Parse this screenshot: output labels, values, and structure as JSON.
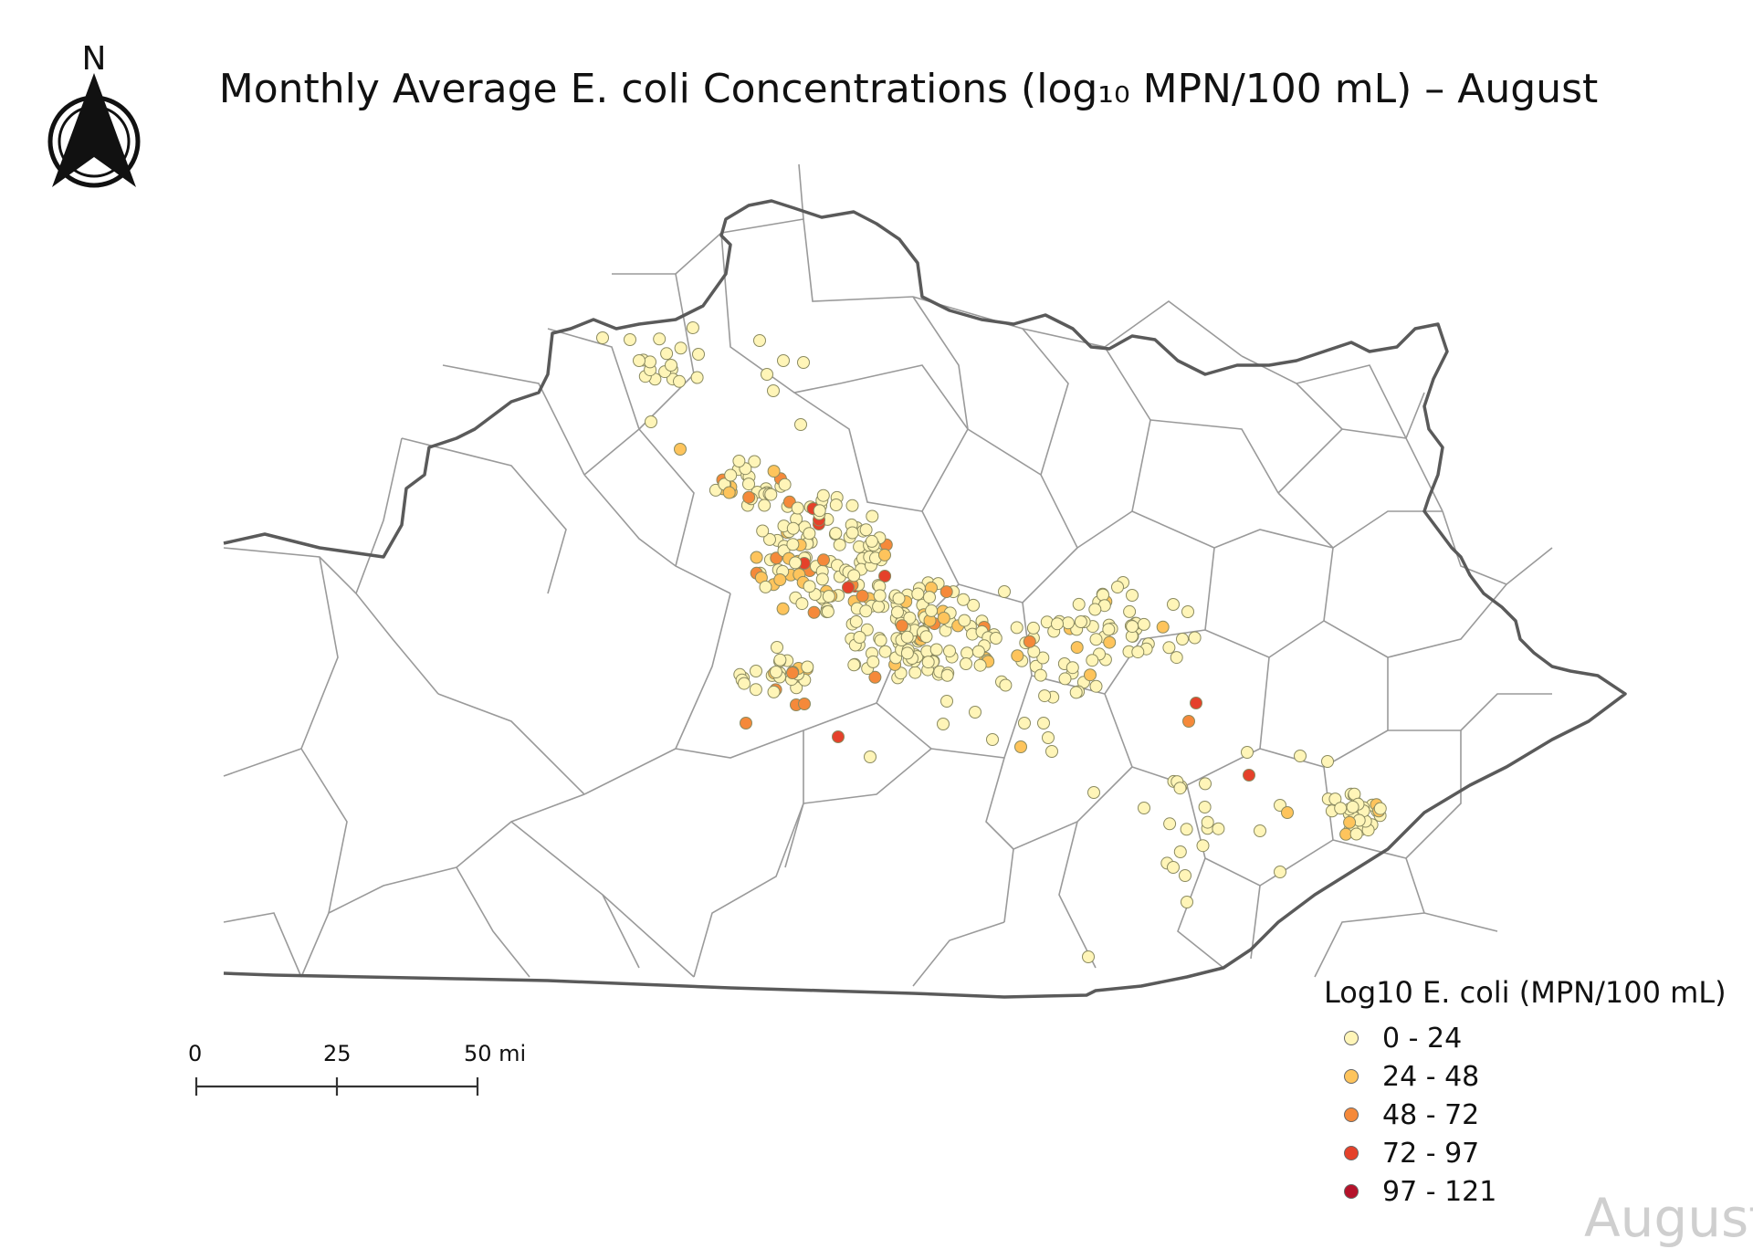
{
  "title": "Monthly Average E. coli Concentrations (log₁₀ MPN/100 mL) – August",
  "north_arrow": {
    "label": "N",
    "icon": "north-arrow-icon"
  },
  "scale_bar": {
    "labels": [
      "0",
      "25",
      "50 mi"
    ]
  },
  "legend": {
    "title": "Log10 E. coli (MPN/100 mL)",
    "classes": [
      {
        "label": "0 - 24",
        "color": "#fff5b8"
      },
      {
        "label": "24 - 48",
        "color": "#fec45c"
      },
      {
        "label": "48 - 72",
        "color": "#f5893a"
      },
      {
        "label": "72 - 97",
        "color": "#e5412a"
      },
      {
        "label": "97 - 121",
        "color": "#b5122a"
      }
    ]
  },
  "watermark": "August",
  "map": {
    "state_border_color": "#5a5a5a",
    "county_line_color": "#9a9a9a",
    "point_stroke_color": "#8a8a60"
  }
}
